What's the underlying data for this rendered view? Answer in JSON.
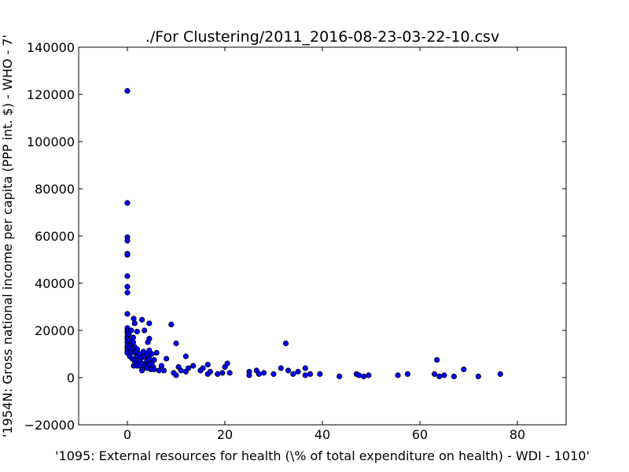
{
  "chart_data": {
    "type": "scatter",
    "title": "./For Clustering/2011_2016-08-23-03-22-10.csv",
    "xlabel": "'1095: External resources for health  (\\% of total expenditure on health) - WDI - 1010'",
    "ylabel": "'1954N: Gross national income per capita (PPP int. $) - WHO - 7'",
    "xlim": [
      -10,
      90
    ],
    "ylim": [
      -20000,
      140000
    ],
    "xticks": [
      0,
      20,
      40,
      60,
      80
    ],
    "yticks": [
      -20000,
      0,
      20000,
      40000,
      60000,
      80000,
      100000,
      120000,
      140000
    ],
    "grid": false,
    "marker_color": "#0000ff",
    "points": [
      [
        0.0,
        121500
      ],
      [
        0.0,
        74000
      ],
      [
        0.0,
        59500
      ],
      [
        0.0,
        58000
      ],
      [
        0.0,
        52500
      ],
      [
        0.0,
        52000
      ],
      [
        0.0,
        43000
      ],
      [
        0.0,
        38500
      ],
      [
        0.0,
        36000
      ],
      [
        0.0,
        27000
      ],
      [
        0.0,
        21000
      ],
      [
        0.0,
        20000
      ],
      [
        0.0,
        19000
      ],
      [
        0.0,
        17500
      ],
      [
        0.0,
        16500
      ],
      [
        0.0,
        15000
      ],
      [
        0.0,
        13500
      ],
      [
        0.0,
        12500
      ],
      [
        0.0,
        11500
      ],
      [
        0.0,
        10500
      ],
      [
        0.3,
        18500
      ],
      [
        0.3,
        13000
      ],
      [
        0.5,
        16000
      ],
      [
        0.5,
        9000
      ],
      [
        0.8,
        20000
      ],
      [
        0.8,
        14500
      ],
      [
        0.8,
        11000
      ],
      [
        1.0,
        12500
      ],
      [
        1.0,
        8000
      ],
      [
        1.2,
        17000
      ],
      [
        1.2,
        15000
      ],
      [
        1.3,
        25000
      ],
      [
        1.3,
        5000
      ],
      [
        1.5,
        23000
      ],
      [
        1.5,
        13000
      ],
      [
        1.5,
        10500
      ],
      [
        1.5,
        7000
      ],
      [
        1.8,
        11000
      ],
      [
        1.8,
        6000
      ],
      [
        2.0,
        19500
      ],
      [
        2.0,
        12000
      ],
      [
        2.0,
        9000
      ],
      [
        2.0,
        5000
      ],
      [
        2.5,
        10000
      ],
      [
        2.5,
        7000
      ],
      [
        2.5,
        5000
      ],
      [
        3.0,
        24500
      ],
      [
        3.0,
        8500
      ],
      [
        3.0,
        6000
      ],
      [
        3.0,
        3000
      ],
      [
        3.3,
        11000
      ],
      [
        3.5,
        20000
      ],
      [
        3.5,
        9000
      ],
      [
        3.5,
        5000
      ],
      [
        4.0,
        10000
      ],
      [
        4.0,
        7000
      ],
      [
        4.0,
        4000
      ],
      [
        4.2,
        15000
      ],
      [
        4.5,
        23000
      ],
      [
        4.5,
        16500
      ],
      [
        4.5,
        11500
      ],
      [
        4.5,
        8000
      ],
      [
        4.5,
        5500
      ],
      [
        4.8,
        3500
      ],
      [
        5.0,
        10000
      ],
      [
        5.0,
        6000
      ],
      [
        5.3,
        4500
      ],
      [
        5.5,
        7500
      ],
      [
        5.5,
        3500
      ],
      [
        6.0,
        10500
      ],
      [
        6.5,
        3000
      ],
      [
        7.0,
        5000
      ],
      [
        7.5,
        3000
      ],
      [
        8.0,
        8000
      ],
      [
        9.0,
        22500
      ],
      [
        9.5,
        2000
      ],
      [
        10.0,
        14500
      ],
      [
        10.0,
        1000
      ],
      [
        10.5,
        4500
      ],
      [
        11.0,
        3000
      ],
      [
        12.0,
        9000
      ],
      [
        12.0,
        2500
      ],
      [
        12.5,
        4000
      ],
      [
        13.5,
        5000
      ],
      [
        15.0,
        3000
      ],
      [
        15.5,
        4000
      ],
      [
        16.5,
        5500
      ],
      [
        16.5,
        1500
      ],
      [
        17.0,
        2500
      ],
      [
        18.5,
        1500
      ],
      [
        19.5,
        2000
      ],
      [
        20.0,
        4500
      ],
      [
        20.5,
        6000
      ],
      [
        21.0,
        2000
      ],
      [
        25.0,
        2500
      ],
      [
        25.0,
        1000
      ],
      [
        26.5,
        3000
      ],
      [
        27.0,
        1500
      ],
      [
        28.0,
        2000
      ],
      [
        30.0,
        1500
      ],
      [
        31.5,
        4000
      ],
      [
        32.5,
        14500
      ],
      [
        33.0,
        3000
      ],
      [
        34.0,
        1500
      ],
      [
        35.0,
        2500
      ],
      [
        36.5,
        4000
      ],
      [
        36.5,
        1000
      ],
      [
        37.5,
        1500
      ],
      [
        39.5,
        1500
      ],
      [
        43.5,
        500
      ],
      [
        47.0,
        1500
      ],
      [
        47.5,
        1000
      ],
      [
        48.5,
        500
      ],
      [
        49.5,
        1000
      ],
      [
        55.5,
        1000
      ],
      [
        57.5,
        1500
      ],
      [
        63.0,
        1500
      ],
      [
        63.5,
        7500
      ],
      [
        64.0,
        500
      ],
      [
        65.0,
        1000
      ],
      [
        67.0,
        500
      ],
      [
        69.0,
        3500
      ],
      [
        72.0,
        500
      ],
      [
        76.5,
        1500
      ]
    ]
  }
}
